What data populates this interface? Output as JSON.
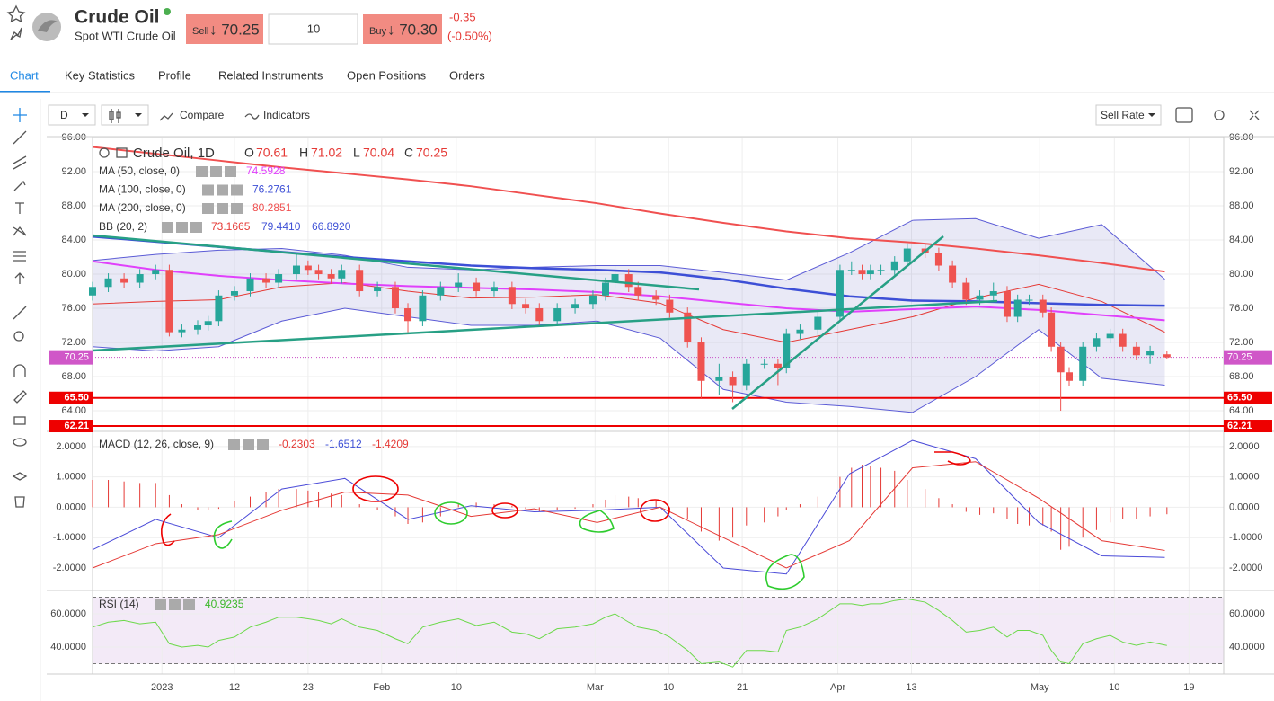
{
  "header": {
    "symbol": "Crude Oil",
    "description": "Spot WTI Crude Oil",
    "sell_label": "Sell",
    "sell_price": "↓ 70.25",
    "quantity": "10",
    "buy_label": "Buy",
    "buy_price": "↓ 70.30",
    "change": "-0.35",
    "change_pct": "(-0.50%)"
  },
  "tabs": [
    "Chart",
    "Key Statistics",
    "Profile",
    "Related Instruments",
    "Open Positions",
    "Orders"
  ],
  "toolbar": {
    "interval": "D",
    "compare": "Compare",
    "indicators": "Indicators",
    "rate": "Sell Rate"
  },
  "ohlc_legend": {
    "o_label": "O",
    "o": "70.61",
    "h_label": "H",
    "h": "71.02",
    "l_label": "L",
    "l": "70.04",
    "c_label": "C",
    "c": "70.25"
  },
  "chart_data": {
    "type": "candlestick",
    "title": "Crude Oil, 1D",
    "up_color": "#26a69a",
    "down_color": "#ef5350",
    "x": [
      0,
      1.5,
      3,
      4.5,
      6,
      7.3,
      8.5,
      10,
      11,
      12,
      13.5,
      15,
      16.5,
      17.7,
      19.4,
      20.5,
      21.5,
      22.7,
      23.7,
      25.4,
      27.1,
      28.8,
      30,
      31.4,
      33.1,
      34.8,
      36.5,
      38.2,
      39.9,
      41.2,
      42.5,
      44.2,
      45.9,
      47.6,
      48.8,
      49.7,
      51,
      51.9,
      53.6,
      54.9,
      56.6,
      57.9,
      59.6,
      60.9,
      62.2,
      63.9,
      65.2,
      66,
      67.3,
      69,
      71.1,
      72.2,
      73.2,
      74,
      75,
      76.3,
      77.5,
      79.2,
      80.5,
      81.8,
      83.1,
      84.4,
      85.7,
      87,
      88,
      89.1,
      90.4,
      91.2,
      92.1,
      92.9,
      94.2,
      95.5,
      96.8,
      98,
      99.3,
      100.6,
      102.2
    ],
    "open": [
      77.5,
      78.5,
      79.5,
      79,
      80,
      80.5,
      73.2,
      73.5,
      74,
      74.5,
      77.5,
      78,
      79.5,
      79,
      80,
      81,
      80.5,
      80,
      79.5,
      80.5,
      78,
      78.5,
      76,
      74.5,
      77.5,
      78.5,
      79,
      78,
      78.5,
      76.5,
      76,
      74.5,
      76,
      76.5,
      77.5,
      79,
      80,
      78.5,
      77.5,
      77,
      75.5,
      72,
      67.5,
      68,
      67,
      69.5,
      69.5,
      69,
      73,
      73.5,
      75,
      80.5,
      80.5,
      80,
      80.5,
      80.5,
      81.5,
      83,
      82.5,
      81,
      79,
      77,
      77.5,
      78,
      75,
      77,
      77,
      75.5,
      71.5,
      68.5,
      67.5,
      71.5,
      72.5,
      73,
      71.5,
      70.5,
      70.61
    ],
    "high": [
      79.1,
      80.1,
      80.1,
      80.6,
      81.1,
      81.1,
      74.1,
      74.6,
      75.1,
      78.1,
      78.6,
      80.1,
      80.1,
      80.6,
      82.5,
      81.6,
      81.1,
      80.6,
      81.1,
      81.1,
      79.1,
      79.1,
      76.6,
      78.1,
      79.1,
      80.1,
      79.6,
      79.1,
      79.1,
      77.1,
      76.6,
      76.6,
      77.1,
      78.1,
      79.6,
      81,
      80.6,
      79.1,
      78.1,
      77.6,
      76.1,
      72.6,
      69.5,
      68.6,
      70.1,
      70.1,
      70.1,
      73.6,
      74.1,
      75.6,
      81.1,
      81.5,
      81.1,
      81.1,
      81.1,
      82.1,
      83.6,
      83.6,
      83.1,
      81.6,
      79.6,
      78.1,
      79,
      78.6,
      77.6,
      77.6,
      77.6,
      76.1,
      72.1,
      69.1,
      72.1,
      73.1,
      73.6,
      73.6,
      72.1,
      71.6,
      71.02
    ],
    "low": [
      76.9,
      77.9,
      78.4,
      78.4,
      79.4,
      72.7,
      72.6,
      72.9,
      73.4,
      73.9,
      76.9,
      77.4,
      78.4,
      78.4,
      79.4,
      79.9,
      79.4,
      78.9,
      78.9,
      77.4,
      77.4,
      75.4,
      73.2,
      73.9,
      76.9,
      77.9,
      77.4,
      77.4,
      75.9,
      75.4,
      73.9,
      73.9,
      75.4,
      75.9,
      76.9,
      78.4,
      77.9,
      76.9,
      76.4,
      74.9,
      71.4,
      65.5,
      65.8,
      65,
      66.4,
      68.9,
      67,
      68.4,
      72.4,
      72.9,
      74.4,
      79.9,
      79.4,
      79.4,
      79.9,
      79.9,
      80.9,
      81.9,
      80.4,
      78.4,
      76.4,
      76.4,
      76.9,
      74.4,
      74.4,
      76.4,
      74.9,
      70.9,
      64,
      66.9,
      66.9,
      70.9,
      71.9,
      70.9,
      69.9,
      69.5,
      70.04
    ],
    "close": [
      78.5,
      79.5,
      79,
      80,
      80.5,
      73.2,
      73.5,
      74,
      74.5,
      77.5,
      78,
      79.5,
      79,
      80,
      81,
      80.5,
      80,
      79.5,
      80.5,
      78,
      78.5,
      76,
      74.5,
      77.5,
      78.5,
      79,
      78,
      78.5,
      76.5,
      76,
      74.5,
      76,
      76.5,
      77.5,
      79,
      80,
      78.5,
      77.5,
      77,
      75.5,
      72,
      67.5,
      68,
      67,
      69.5,
      69.5,
      69,
      73,
      73.5,
      75,
      80.5,
      80.5,
      80,
      80.5,
      80.5,
      81.5,
      83,
      82.5,
      81,
      79,
      77,
      77.5,
      78,
      75,
      77,
      77,
      75.5,
      71.5,
      68.5,
      67.5,
      71.5,
      72.5,
      73,
      71.5,
      70.5,
      71,
      70.25
    ],
    "xlim": [
      0,
      107.6
    ],
    "xticks": [
      {
        "value": 6.6,
        "label": "2023"
      },
      {
        "value": 13.5,
        "label": "12"
      },
      {
        "value": 20.5,
        "label": "23"
      },
      {
        "value": 27.5,
        "label": "Feb"
      },
      {
        "value": 34.6,
        "label": "10"
      },
      {
        "value": 47.8,
        "label": "Mar"
      },
      {
        "value": 54.8,
        "label": "10"
      },
      {
        "value": 61.8,
        "label": "21"
      },
      {
        "value": 70.9,
        "label": "Apr"
      },
      {
        "value": 77.9,
        "label": "13"
      },
      {
        "value": 90.1,
        "label": "May"
      },
      {
        "value": 97.2,
        "label": "10"
      },
      {
        "value": 104.3,
        "label": "19"
      }
    ],
    "ylim": [
      61.58,
      96.11
    ],
    "yticks": [
      {
        "value": 96,
        "label": "96.00"
      },
      {
        "value": 92,
        "label": "92.00"
      },
      {
        "value": 88,
        "label": "88.00"
      },
      {
        "value": 84,
        "label": "84.00"
      },
      {
        "value": 80,
        "label": "80.00"
      },
      {
        "value": 76,
        "label": "76.00"
      },
      {
        "value": 72,
        "label": "72.00"
      },
      {
        "value": 68,
        "label": "68.00"
      },
      {
        "value": 64,
        "label": "64.00"
      }
    ],
    "grid": true,
    "line_x": [
      0,
      6,
      12,
      18,
      24,
      30,
      36,
      42,
      48,
      54,
      60,
      66,
      72,
      78,
      84,
      90,
      96,
      102
    ],
    "lines": [
      {
        "name": "MA (50, close, 0)",
        "legend_value": "74.5928",
        "color": "#e040fb",
        "values": [
          81.5,
          80.5,
          79.8,
          79.3,
          78.9,
          78.6,
          78.4,
          78.2,
          77.9,
          77.4,
          76.7,
          76,
          75.6,
          75.9,
          76.2,
          75.8,
          75.2,
          74.6
        ]
      },
      {
        "name": "MA (100, close, 0)",
        "legend_value": "76.2761",
        "color": "#3d4fd6",
        "values": [
          84.4,
          83.8,
          83.2,
          82.6,
          82,
          81.5,
          81,
          80.7,
          80.5,
          80.2,
          79.4,
          78.3,
          77.4,
          76.9,
          76.8,
          76.6,
          76.4,
          76.3
        ]
      },
      {
        "name": "MA (200, close, 0)",
        "legend_value": "80.2851",
        "color": "#f05050",
        "values": [
          94.9,
          94.1,
          93.3,
          92.5,
          91.8,
          91.1,
          90.3,
          89.3,
          88.3,
          87.1,
          86,
          85,
          84.2,
          83.7,
          83,
          82.2,
          81.3,
          80.3
        ]
      }
    ],
    "bb": {
      "name": "BB (20, 2)",
      "legend_values": [
        "73.1665",
        "79.4410",
        "66.8920"
      ],
      "basis_color": "#e53935",
      "band_color": "#5b5bd6",
      "upper": [
        81.6,
        82.3,
        82.8,
        83,
        82.2,
        80.8,
        80.5,
        80.8,
        81,
        81,
        80.2,
        79.3,
        82.5,
        86.3,
        86.5,
        84.2,
        85.8,
        79.4
      ],
      "basis": [
        76.5,
        76.8,
        77,
        78.5,
        79,
        78,
        77.2,
        77.3,
        77.6,
        76.6,
        73.5,
        72,
        73.5,
        75,
        77.2,
        78.8,
        76.8,
        73.2
      ],
      "lower": [
        71.5,
        71,
        71.5,
        74.5,
        76,
        75,
        74,
        74,
        74.5,
        72.5,
        66.5,
        65,
        64.5,
        63.8,
        68,
        73.5,
        67.8,
        67
      ]
    },
    "price_lines": [
      {
        "value": 65.5,
        "label": "65.50"
      },
      {
        "value": 62.21,
        "label": "62.21"
      }
    ],
    "last_price": {
      "value": 70.25,
      "label": "70.25"
    },
    "macd": {
      "name": "MACD (12, 26, close, 9)",
      "legend_values": [
        "-0.2303",
        "-1.6512",
        "-1.4209"
      ],
      "ylim": [
        -2.74,
        2.41
      ],
      "yticks": [
        {
          "value": 2,
          "label": "2.0000"
        },
        {
          "value": 1,
          "label": "1.0000"
        },
        {
          "value": 0,
          "label": "0.0000"
        },
        {
          "value": -1,
          "label": "-1.0000"
        },
        {
          "value": -2,
          "label": "-2.0000"
        }
      ],
      "histogram": [
        0.9,
        0.9,
        0.85,
        0.8,
        0.8,
        0.4,
        0.1,
        -0.1,
        -0.1,
        -0.05,
        0.2,
        0.35,
        0.5,
        0.6,
        0.6,
        0.55,
        0.5,
        0.45,
        0.4,
        0.1,
        -0.1,
        -0.3,
        -0.55,
        -0.5,
        -0.3,
        0.1,
        0.15,
        0.1,
        0.05,
        -0.05,
        -0.15,
        -0.1,
        -0.05,
        0.1,
        0.25,
        0.4,
        0.35,
        0.3,
        0.2,
        -0.1,
        -0.4,
        -0.8,
        -1.1,
        -1.0,
        -0.6,
        -0.5,
        -0.3,
        -0.1,
        0.1,
        0.35,
        1.0,
        1.3,
        1.4,
        1.35,
        1.3,
        1.2,
        0.9,
        0.6,
        0.3,
        0.1,
        -0.15,
        -0.25,
        -0.2,
        -0.4,
        -0.55,
        -0.6,
        -0.6,
        -0.8,
        -1.4,
        -1.3,
        -1.0,
        -0.75,
        -0.5,
        -0.4,
        -0.4,
        -0.3,
        -0.2303
      ],
      "macd": [
        -1.4,
        -0.4,
        -1.0,
        0.6,
        0.95,
        -0.4,
        0.05,
        -0.15,
        -0.1,
        0,
        -2.0,
        -2.2,
        1.1,
        2.2,
        1.6,
        -0.5,
        -1.6,
        -1.6512
      ],
      "signal": [
        -2.0,
        -1.2,
        -0.9,
        -0.1,
        0.5,
        0.4,
        -0.3,
        -0.05,
        -0.5,
        0,
        -1.0,
        -2.0,
        -1.1,
        1.3,
        1.5,
        0.3,
        -1.1,
        -1.4209
      ]
    },
    "rsi": {
      "name": "RSI (14)",
      "legend_value": "40.9235",
      "ylim": [
        23.78,
        72.43
      ],
      "band": [
        30,
        70
      ],
      "yticks": [
        {
          "value": 60,
          "label": "60.0000"
        },
        {
          "value": 40,
          "label": "40.0000"
        }
      ],
      "values": [
        52,
        55,
        56,
        54,
        55,
        42,
        40,
        41,
        40,
        44,
        46,
        52,
        55,
        58,
        58,
        57,
        56,
        54,
        57,
        52,
        50,
        45,
        42,
        52,
        55,
        57,
        53,
        55,
        49,
        48,
        45,
        51,
        52,
        54,
        58,
        60,
        55,
        52,
        50,
        46,
        38,
        30,
        31,
        28,
        38,
        38,
        37,
        50,
        52,
        57,
        66,
        66,
        65,
        66,
        66,
        68,
        69,
        67,
        62,
        56,
        49,
        50,
        52,
        46,
        50,
        50,
        47,
        38,
        31,
        30,
        42,
        45,
        47,
        43,
        41,
        43,
        40.9235
      ]
    }
  }
}
